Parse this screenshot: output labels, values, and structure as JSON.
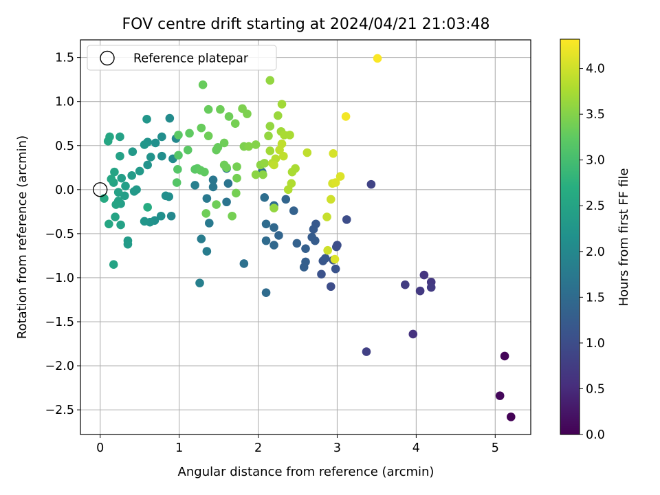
{
  "chart_data": {
    "type": "scatter",
    "title": "FOV centre drift starting at 2024/04/21 21:03:48",
    "xlabel": "Angular distance from reference (arcmin)",
    "ylabel": "Rotation from reference (arcmin)",
    "xlim": [
      -0.25,
      5.45
    ],
    "ylim": [
      -2.78,
      1.7
    ],
    "xticks": [
      0,
      1,
      2,
      3,
      4,
      5
    ],
    "xtick_labels": [
      "0",
      "1",
      "2",
      "3",
      "4",
      "5"
    ],
    "yticks": [
      1.5,
      1.0,
      0.5,
      0.0,
      -0.5,
      -1.0,
      -1.5,
      -2.0,
      -2.5
    ],
    "ytick_labels": [
      "1.5",
      "1.0",
      "0.5",
      "0.0",
      "−0.5",
      "−1.0",
      "−1.5",
      "−2.0",
      "−2.5"
    ],
    "grid": true,
    "colormap": "viridis",
    "colorbar": {
      "label": "Hours from first FF file",
      "range": [
        0.0,
        4.32
      ],
      "ticks": [
        0.0,
        0.5,
        1.0,
        1.5,
        2.0,
        2.5,
        3.0,
        3.5,
        4.0
      ],
      "tick_labels": [
        "0.0",
        "0.5",
        "1.0",
        "1.5",
        "2.0",
        "2.5",
        "3.0",
        "3.5",
        "4.0"
      ]
    },
    "legend": {
      "position": "upper-left",
      "entries": [
        {
          "label": "Reference platepar",
          "marker": "open-circle"
        }
      ]
    },
    "reference_point": {
      "x": 0.0,
      "y": 0.0
    },
    "series": [
      {
        "points": [
          {
            "x": 5.12,
            "y": -1.89,
            "c": 0.05
          },
          {
            "x": 5.06,
            "y": -2.34,
            "c": 0.08
          },
          {
            "x": 5.2,
            "y": -2.58,
            "c": 0.02
          },
          {
            "x": 3.96,
            "y": -1.64,
            "c": 0.6
          },
          {
            "x": 3.37,
            "y": -1.84,
            "c": 0.8
          },
          {
            "x": 3.86,
            "y": -1.08,
            "c": 0.75
          },
          {
            "x": 4.05,
            "y": -1.15,
            "c": 0.7
          },
          {
            "x": 4.1,
            "y": -0.97,
            "c": 0.65
          },
          {
            "x": 4.19,
            "y": -1.05,
            "c": 0.68
          },
          {
            "x": 4.19,
            "y": -1.11,
            "c": 0.72
          },
          {
            "x": 3.43,
            "y": 0.06,
            "c": 0.85
          },
          {
            "x": 3.12,
            "y": -0.34,
            "c": 1.0
          },
          {
            "x": 2.99,
            "y": -0.65,
            "c": 1.05
          },
          {
            "x": 3.0,
            "y": -0.63,
            "c": 1.02
          },
          {
            "x": 2.98,
            "y": -0.9,
            "c": 1.1
          },
          {
            "x": 2.95,
            "y": -0.8,
            "c": 1.12
          },
          {
            "x": 2.92,
            "y": -1.1,
            "c": 1.0
          },
          {
            "x": 2.8,
            "y": -0.96,
            "c": 1.08
          },
          {
            "x": 2.82,
            "y": -0.81,
            "c": 1.15
          },
          {
            "x": 2.85,
            "y": -0.78,
            "c": 1.18
          },
          {
            "x": 2.73,
            "y": -0.39,
            "c": 1.2
          },
          {
            "x": 2.7,
            "y": -0.45,
            "c": 1.22
          },
          {
            "x": 2.68,
            "y": -0.54,
            "c": 1.25
          },
          {
            "x": 2.72,
            "y": -0.58,
            "c": 1.25
          },
          {
            "x": 2.6,
            "y": -0.67,
            "c": 1.3
          },
          {
            "x": 2.6,
            "y": -0.82,
            "c": 1.3
          },
          {
            "x": 2.58,
            "y": -0.88,
            "c": 1.3
          },
          {
            "x": 2.49,
            "y": -0.61,
            "c": 1.35
          },
          {
            "x": 2.45,
            "y": -0.24,
            "c": 1.35
          },
          {
            "x": 2.35,
            "y": -0.11,
            "c": 1.4
          },
          {
            "x": 2.26,
            "y": -0.52,
            "c": 1.4
          },
          {
            "x": 2.2,
            "y": -0.43,
            "c": 1.45
          },
          {
            "x": 2.2,
            "y": -0.63,
            "c": 1.45
          },
          {
            "x": 2.1,
            "y": -0.39,
            "c": 1.5
          },
          {
            "x": 2.1,
            "y": -0.58,
            "c": 1.5
          },
          {
            "x": 2.1,
            "y": -1.17,
            "c": 1.5
          },
          {
            "x": 2.08,
            "y": -0.09,
            "c": 1.55
          },
          {
            "x": 2.2,
            "y": -0.18,
            "c": 1.55
          },
          {
            "x": 2.05,
            "y": 0.2,
            "c": 1.6
          },
          {
            "x": 1.82,
            "y": -0.84,
            "c": 1.6
          },
          {
            "x": 1.62,
            "y": 0.07,
            "c": 1.65
          },
          {
            "x": 1.6,
            "y": -0.14,
            "c": 1.65
          },
          {
            "x": 1.6,
            "y": 0.24,
            "c": 1.7
          },
          {
            "x": 1.43,
            "y": 0.03,
            "c": 1.7
          },
          {
            "x": 1.43,
            "y": 0.11,
            "c": 1.7
          },
          {
            "x": 1.38,
            "y": -0.38,
            "c": 1.75
          },
          {
            "x": 1.35,
            "y": -0.1,
            "c": 1.75
          },
          {
            "x": 1.35,
            "y": -0.7,
            "c": 1.8
          },
          {
            "x": 1.28,
            "y": -0.56,
            "c": 1.8
          },
          {
            "x": 1.26,
            "y": -1.06,
            "c": 1.85
          },
          {
            "x": 1.2,
            "y": 0.05,
            "c": 1.85
          },
          {
            "x": 0.96,
            "y": 0.58,
            "c": 2.0
          },
          {
            "x": 0.9,
            "y": -0.3,
            "c": 2.0
          },
          {
            "x": 0.88,
            "y": 0.81,
            "c": 2.05
          },
          {
            "x": 0.92,
            "y": 0.35,
            "c": 2.05
          },
          {
            "x": 0.87,
            "y": -0.08,
            "c": 2.1
          },
          {
            "x": 0.83,
            "y": -0.07,
            "c": 2.1
          },
          {
            "x": 0.78,
            "y": 0.6,
            "c": 2.1
          },
          {
            "x": 0.78,
            "y": 0.38,
            "c": 2.1
          },
          {
            "x": 0.77,
            "y": -0.3,
            "c": 2.15
          },
          {
            "x": 0.7,
            "y": 0.53,
            "c": 2.15
          },
          {
            "x": 0.69,
            "y": -0.35,
            "c": 2.15
          },
          {
            "x": 0.64,
            "y": 0.37,
            "c": 2.2
          },
          {
            "x": 0.63,
            "y": -0.37,
            "c": 2.2
          },
          {
            "x": 0.6,
            "y": 0.54,
            "c": 2.2
          },
          {
            "x": 0.6,
            "y": 0.28,
            "c": 2.2
          },
          {
            "x": 0.59,
            "y": 0.8,
            "c": 2.25
          },
          {
            "x": 0.56,
            "y": 0.51,
            "c": 2.25
          },
          {
            "x": 0.56,
            "y": -0.36,
            "c": 2.25
          },
          {
            "x": 0.5,
            "y": 0.21,
            "c": 2.3
          },
          {
            "x": 0.46,
            "y": 0.0,
            "c": 2.3
          },
          {
            "x": 0.43,
            "y": -0.02,
            "c": 2.3
          },
          {
            "x": 0.41,
            "y": 0.43,
            "c": 2.3
          },
          {
            "x": 0.4,
            "y": 0.16,
            "c": 2.35
          },
          {
            "x": 0.35,
            "y": -0.58,
            "c": 2.35
          },
          {
            "x": 0.35,
            "y": -0.62,
            "c": 2.35
          },
          {
            "x": 0.32,
            "y": 0.04,
            "c": 2.4
          },
          {
            "x": 0.31,
            "y": -0.07,
            "c": 2.4
          },
          {
            "x": 0.27,
            "y": 0.13,
            "c": 2.4
          },
          {
            "x": 0.26,
            "y": -0.16,
            "c": 2.4
          },
          {
            "x": 0.26,
            "y": -0.4,
            "c": 2.45
          },
          {
            "x": 0.25,
            "y": 0.6,
            "c": 2.45
          },
          {
            "x": 0.25,
            "y": 0.38,
            "c": 2.45
          },
          {
            "x": 0.23,
            "y": -0.13,
            "c": 2.45
          },
          {
            "x": 0.23,
            "y": -0.03,
            "c": 2.45
          },
          {
            "x": 0.2,
            "y": -0.17,
            "c": 2.5
          },
          {
            "x": 0.19,
            "y": -0.31,
            "c": 2.5
          },
          {
            "x": 0.18,
            "y": 0.2,
            "c": 2.5
          },
          {
            "x": 0.17,
            "y": 0.08,
            "c": 2.5
          },
          {
            "x": 0.17,
            "y": -0.85,
            "c": 2.5
          },
          {
            "x": 0.14,
            "y": 0.12,
            "c": 2.55
          },
          {
            "x": 0.12,
            "y": 0.6,
            "c": 2.55
          },
          {
            "x": 0.11,
            "y": -0.39,
            "c": 2.55
          },
          {
            "x": 0.1,
            "y": 0.55,
            "c": 2.55
          },
          {
            "x": 0.05,
            "y": -0.1,
            "c": 2.6
          },
          {
            "x": 0.6,
            "y": -0.2,
            "c": 2.65
          },
          {
            "x": 1.3,
            "y": 1.19,
            "c": 3.3
          },
          {
            "x": 1.37,
            "y": 0.91,
            "c": 3.3
          },
          {
            "x": 1.52,
            "y": 0.91,
            "c": 3.35
          },
          {
            "x": 1.63,
            "y": 0.83,
            "c": 3.35
          },
          {
            "x": 1.71,
            "y": 0.75,
            "c": 3.4
          },
          {
            "x": 1.8,
            "y": 0.92,
            "c": 3.45
          },
          {
            "x": 1.86,
            "y": 0.86,
            "c": 3.45
          },
          {
            "x": 1.37,
            "y": 0.61,
            "c": 3.35
          },
          {
            "x": 1.28,
            "y": 0.7,
            "c": 3.3
          },
          {
            "x": 1.13,
            "y": 0.64,
            "c": 3.25
          },
          {
            "x": 0.99,
            "y": 0.62,
            "c": 3.2
          },
          {
            "x": 1.11,
            "y": 0.45,
            "c": 3.2
          },
          {
            "x": 0.99,
            "y": 0.39,
            "c": 3.15
          },
          {
            "x": 0.98,
            "y": 0.23,
            "c": 3.15
          },
          {
            "x": 0.97,
            "y": 0.08,
            "c": 3.15
          },
          {
            "x": 1.2,
            "y": 0.23,
            "c": 3.2
          },
          {
            "x": 1.23,
            "y": 0.24,
            "c": 3.2
          },
          {
            "x": 1.27,
            "y": 0.22,
            "c": 3.25
          },
          {
            "x": 1.32,
            "y": 0.2,
            "c": 3.25
          },
          {
            "x": 1.47,
            "y": 0.45,
            "c": 3.3
          },
          {
            "x": 1.49,
            "y": 0.48,
            "c": 3.3
          },
          {
            "x": 1.57,
            "y": 0.53,
            "c": 3.35
          },
          {
            "x": 1.6,
            "y": 0.25,
            "c": 3.35
          },
          {
            "x": 1.57,
            "y": 0.28,
            "c": 3.35
          },
          {
            "x": 1.73,
            "y": 0.26,
            "c": 3.4
          },
          {
            "x": 1.73,
            "y": 0.13,
            "c": 3.4
          },
          {
            "x": 1.72,
            "y": -0.04,
            "c": 3.4
          },
          {
            "x": 1.67,
            "y": -0.3,
            "c": 3.4
          },
          {
            "x": 1.47,
            "y": -0.17,
            "c": 3.35
          },
          {
            "x": 1.34,
            "y": -0.27,
            "c": 3.35
          },
          {
            "x": 1.82,
            "y": 0.49,
            "c": 3.45
          },
          {
            "x": 1.88,
            "y": 0.49,
            "c": 3.5
          },
          {
            "x": 1.97,
            "y": 0.51,
            "c": 3.5
          },
          {
            "x": 1.97,
            "y": 0.17,
            "c": 3.55
          },
          {
            "x": 2.03,
            "y": 0.28,
            "c": 3.55
          },
          {
            "x": 2.06,
            "y": 0.17,
            "c": 3.55
          },
          {
            "x": 2.08,
            "y": 0.3,
            "c": 3.6
          },
          {
            "x": 2.13,
            "y": 0.61,
            "c": 3.6
          },
          {
            "x": 2.15,
            "y": 0.72,
            "c": 3.6
          },
          {
            "x": 2.15,
            "y": 1.24,
            "c": 3.6
          },
          {
            "x": 2.2,
            "y": -0.21,
            "c": 3.6
          },
          {
            "x": 2.25,
            "y": 0.84,
            "c": 3.65
          },
          {
            "x": 2.3,
            "y": 0.97,
            "c": 3.7
          },
          {
            "x": 2.29,
            "y": 0.66,
            "c": 3.7
          },
          {
            "x": 2.33,
            "y": 0.62,
            "c": 3.75
          },
          {
            "x": 2.4,
            "y": 0.62,
            "c": 3.75
          },
          {
            "x": 2.43,
            "y": 0.2,
            "c": 3.75
          },
          {
            "x": 2.47,
            "y": 0.24,
            "c": 3.75
          },
          {
            "x": 2.42,
            "y": 0.07,
            "c": 3.8
          },
          {
            "x": 2.38,
            "y": 0.0,
            "c": 3.8
          },
          {
            "x": 2.15,
            "y": 0.44,
            "c": 3.7
          },
          {
            "x": 2.18,
            "y": 0.3,
            "c": 3.85
          },
          {
            "x": 2.22,
            "y": 0.35,
            "c": 3.85
          },
          {
            "x": 2.2,
            "y": 0.28,
            "c": 3.9
          },
          {
            "x": 2.27,
            "y": 0.45,
            "c": 3.9
          },
          {
            "x": 2.3,
            "y": 0.52,
            "c": 3.9
          },
          {
            "x": 2.32,
            "y": 0.38,
            "c": 3.9
          },
          {
            "x": 2.62,
            "y": 0.42,
            "c": 3.9
          },
          {
            "x": 2.87,
            "y": -0.31,
            "c": 3.95
          },
          {
            "x": 2.88,
            "y": -0.69,
            "c": 4.0
          },
          {
            "x": 2.92,
            "y": -0.11,
            "c": 4.0
          },
          {
            "x": 2.94,
            "y": 0.07,
            "c": 4.05
          },
          {
            "x": 2.95,
            "y": 0.41,
            "c": 4.05
          },
          {
            "x": 2.97,
            "y": -0.79,
            "c": 4.1
          },
          {
            "x": 2.98,
            "y": 0.08,
            "c": 4.1
          },
          {
            "x": 3.04,
            "y": 0.15,
            "c": 4.1
          },
          {
            "x": 3.11,
            "y": 0.83,
            "c": 4.25
          },
          {
            "x": 3.51,
            "y": 1.49,
            "c": 4.3
          }
        ]
      }
    ]
  }
}
